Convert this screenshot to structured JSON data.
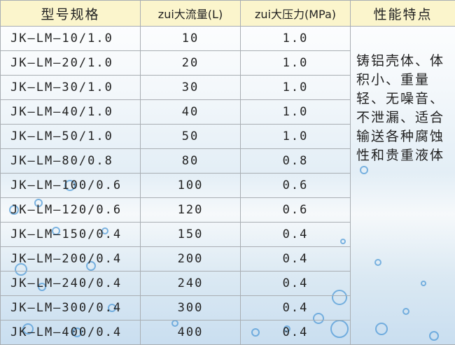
{
  "headers": [
    "型号规格",
    "zui大流量(L)",
    "zui大压力(MPa)",
    "性能特点"
  ],
  "rows": [
    {
      "model": "JK—LM—10/1.0",
      "flow": "10",
      "pressure": "1.0"
    },
    {
      "model": "JK—LM—20/1.0",
      "flow": "20",
      "pressure": "1.0"
    },
    {
      "model": "JK—LM—30/1.0",
      "flow": "30",
      "pressure": "1.0"
    },
    {
      "model": "JK—LM—40/1.0",
      "flow": "40",
      "pressure": "1.0"
    },
    {
      "model": "JK—LM—50/1.0",
      "flow": "50",
      "pressure": "1.0"
    },
    {
      "model": "JK—LM—80/0.8",
      "flow": "80",
      "pressure": "0.8"
    },
    {
      "model": "JK—LM—100/0.6",
      "flow": "100",
      "pressure": "0.6"
    },
    {
      "model": "JK—LM—120/0.6",
      "flow": "120",
      "pressure": "0.6"
    },
    {
      "model": "JK—LM—150/0.4",
      "flow": "150",
      "pressure": "0.4"
    },
    {
      "model": "JK—LM—200/0.4",
      "flow": "200",
      "pressure": "0.4"
    },
    {
      "model": "JK—LM—240/0.4",
      "flow": "240",
      "pressure": "0.4"
    },
    {
      "model": "JK—LM—300/0.4",
      "flow": "300",
      "pressure": "0.4"
    },
    {
      "model": "JK—LM—400/0.4",
      "flow": "400",
      "pressure": "0.4"
    }
  ],
  "features": "铸铝壳体、体积小、重量轻、无噪音、不泄漏、适合输送各种腐蚀性和贵重液体",
  "colors": {
    "header_bg": "#fbf5cc",
    "border": "#a9aeb3",
    "water": "#3d8fd0"
  }
}
